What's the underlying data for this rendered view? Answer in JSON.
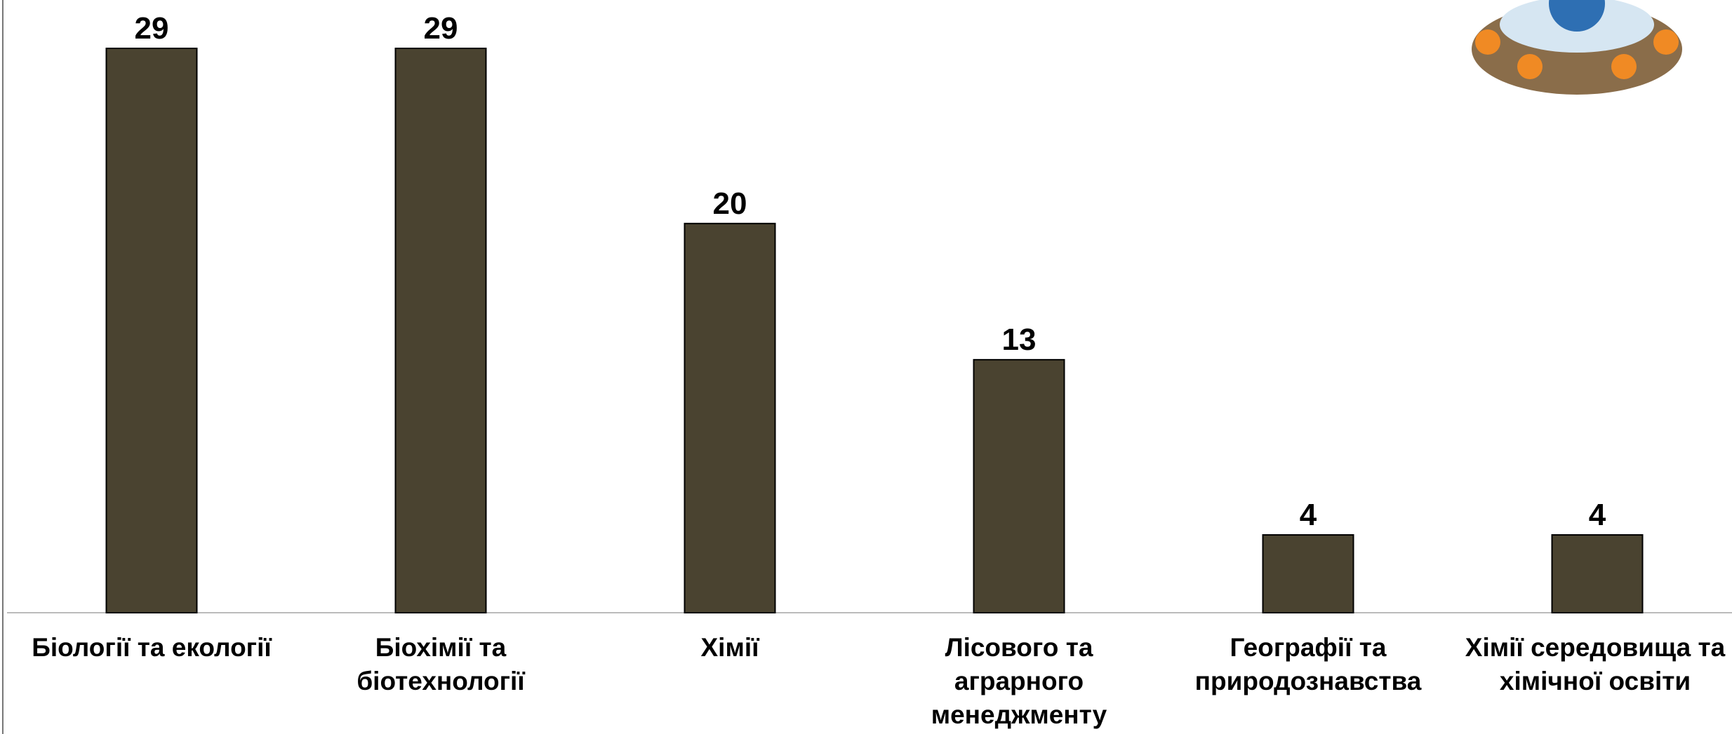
{
  "chart_data": {
    "type": "bar",
    "categories": [
      "Біології та екології",
      "Біохімії та біотехнології",
      "Хімії",
      "Лісового та аграрного менеджменту",
      "Географії та природознавства",
      "Хімії середовища та хімічної освіти"
    ],
    "values": [
      29,
      29,
      20,
      13,
      4,
      4
    ],
    "color": "#4a4330",
    "ylim": [
      0,
      29
    ]
  }
}
